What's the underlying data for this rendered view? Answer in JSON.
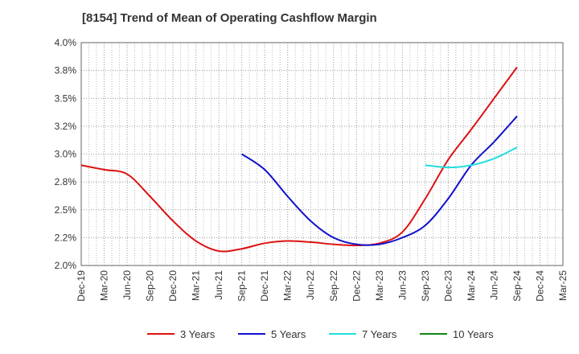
{
  "header": {
    "title": "[8154]  Trend of Mean of Operating Cashflow Margin"
  },
  "chart_data": {
    "type": "line",
    "title": "[8154]  Trend of Mean of Operating Cashflow Margin",
    "xlabel": "",
    "ylabel": "",
    "ylim": [
      2.0,
      4.0
    ],
    "y_ticks": [
      {
        "value": 2.0,
        "label": "2.0%"
      },
      {
        "value": 2.25,
        "label": "2.2%"
      },
      {
        "value": 2.5,
        "label": "2.5%"
      },
      {
        "value": 2.75,
        "label": "2.8%"
      },
      {
        "value": 3.0,
        "label": "3.0%"
      },
      {
        "value": 3.25,
        "label": "3.2%"
      },
      {
        "value": 3.5,
        "label": "3.5%"
      },
      {
        "value": 3.75,
        "label": "3.8%"
      },
      {
        "value": 4.0,
        "label": "4.0%"
      }
    ],
    "categories": [
      "Dec-19",
      "Mar-20",
      "Jun-20",
      "Sep-20",
      "Dec-20",
      "Mar-21",
      "Jun-21",
      "Sep-21",
      "Dec-21",
      "Mar-22",
      "Jun-22",
      "Sep-22",
      "Dec-22",
      "Mar-23",
      "Jun-23",
      "Sep-23",
      "Dec-23",
      "Mar-24",
      "Jun-24",
      "Sep-24",
      "Dec-24",
      "Mar-25"
    ],
    "tick_labels": [
      "Dec-19",
      "Mar-20",
      "Jun-20",
      "Sep-20",
      "Dec-20",
      "Mar-21",
      "Jun-21",
      "Sep-21",
      "Dec-21",
      "Mar-22",
      "Jun-22",
      "Sep-22",
      "Dec-22",
      "Mar-23",
      "Jun-23",
      "Sep-23",
      "Dec-23",
      "Mar-24",
      "Jun-24",
      "Sep-24",
      "Dec-24",
      "Mar-25"
    ],
    "grid": true,
    "legend_position": "bottom",
    "series": [
      {
        "name": "3 Years",
        "color": "#dd1111",
        "values": [
          2.9,
          2.86,
          2.82,
          2.62,
          2.4,
          2.22,
          2.13,
          2.15,
          2.2,
          2.22,
          2.21,
          2.19,
          2.18,
          2.2,
          2.3,
          2.6,
          2.95,
          3.22,
          3.5,
          3.78,
          null,
          null
        ]
      },
      {
        "name": "5 Years",
        "color": "#1111cc",
        "values": [
          null,
          null,
          null,
          null,
          null,
          null,
          null,
          3.0,
          2.86,
          2.62,
          2.4,
          2.25,
          2.19,
          2.19,
          2.25,
          2.36,
          2.6,
          2.9,
          3.11,
          3.34,
          null,
          null
        ]
      },
      {
        "name": "7 Years",
        "color": "#22dddd",
        "values": [
          null,
          null,
          null,
          null,
          null,
          null,
          null,
          null,
          null,
          null,
          null,
          null,
          null,
          null,
          null,
          2.9,
          2.88,
          2.9,
          2.96,
          3.06,
          null,
          null
        ]
      },
      {
        "name": "10 Years",
        "color": "#118811",
        "values": [
          null,
          null,
          null,
          null,
          null,
          null,
          null,
          null,
          null,
          null,
          null,
          null,
          null,
          null,
          null,
          null,
          null,
          null,
          null,
          null,
          null,
          null
        ]
      }
    ]
  }
}
